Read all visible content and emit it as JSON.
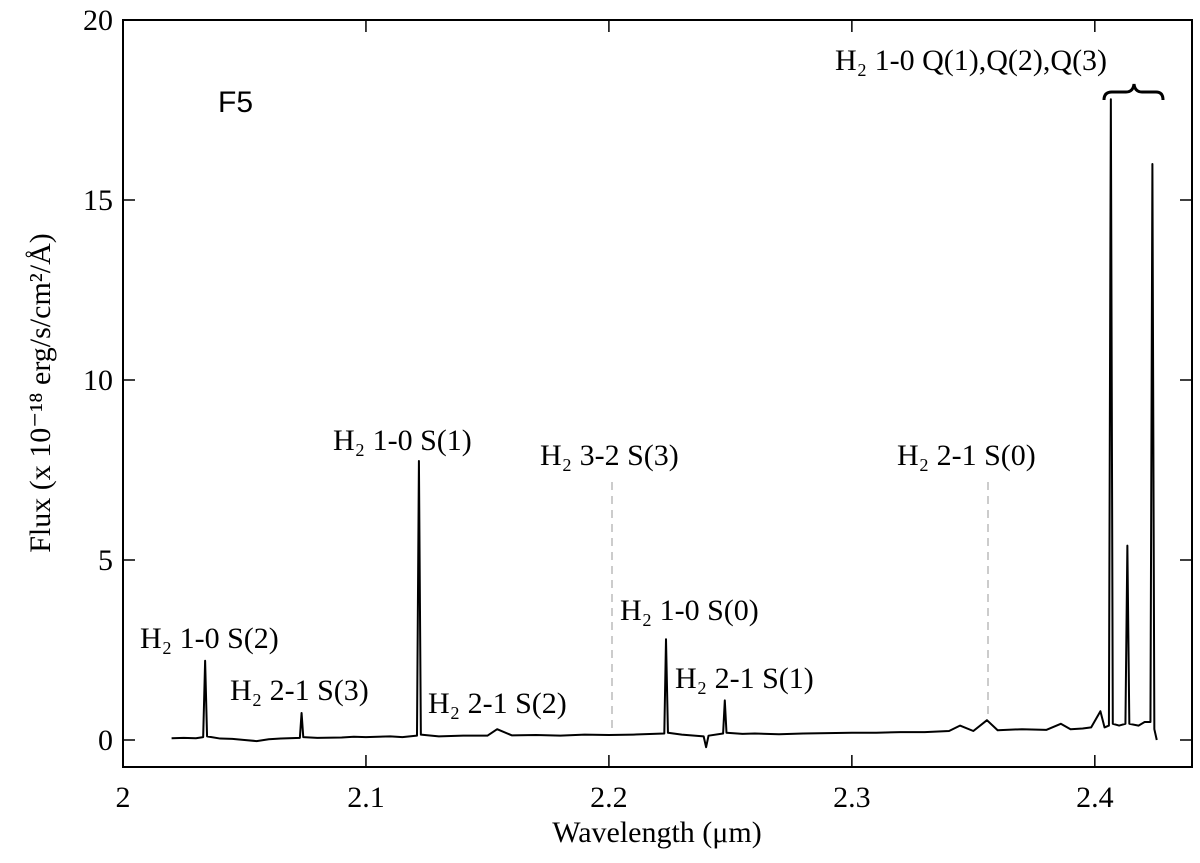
{
  "chart_data": {
    "type": "line",
    "panel_label": "F5",
    "x_label": "Wavelength (μm)",
    "y_label": "Flux (x 10⁻¹⁸ erg/s/cm²/Å)",
    "xlim": [
      2.0,
      2.44
    ],
    "ylim": [
      -0.75,
      20
    ],
    "xticks": [
      2,
      2.1,
      2.2,
      2.3,
      2.4
    ],
    "yticks": [
      0,
      5,
      10,
      15,
      20
    ],
    "annotations": [
      "H₂ 1-0 Q(1),Q(2),Q(3)",
      "H₂ 1-0 S(2)",
      "H₂ 2-1 S(3)",
      "H₂ 1-0 S(1)",
      "H₂ 2-1 S(2)",
      "H₂ 3-2 S(3)",
      "H₂ 1-0 S(0)",
      "H₂ 2-1 S(1)",
      "H₂ 2-1 S(0)"
    ],
    "series": [
      {
        "name": "F5",
        "color": "#000000",
        "x": [
          2.02,
          2.025,
          2.03,
          2.033,
          2.0338,
          2.0346,
          2.04,
          2.045,
          2.05,
          2.055,
          2.06,
          2.065,
          2.0728,
          2.0735,
          2.0742,
          2.08,
          2.09,
          2.095,
          2.1,
          2.11,
          2.115,
          2.121,
          2.1218,
          2.1226,
          2.13,
          2.14,
          2.15,
          2.154,
          2.16,
          2.17,
          2.18,
          2.19,
          2.2,
          2.21,
          2.2228,
          2.2235,
          2.2243,
          2.23,
          2.239,
          2.24,
          2.241,
          2.247,
          2.2477,
          2.2484,
          2.255,
          2.26,
          2.27,
          2.28,
          2.29,
          2.3,
          2.31,
          2.32,
          2.33,
          2.34,
          2.3445,
          2.35,
          2.3556,
          2.36,
          2.37,
          2.38,
          2.386,
          2.39,
          2.395,
          2.3985,
          2.4023,
          2.404,
          2.4058,
          2.4066,
          2.4074,
          2.41,
          2.4126,
          2.4134,
          2.4142,
          2.418,
          2.4205,
          2.4229,
          2.4237,
          2.4245,
          2.4255
        ],
        "values": [
          0.05,
          0.06,
          0.05,
          0.08,
          2.2,
          0.1,
          0.04,
          0.03,
          0.0,
          -0.03,
          0.02,
          0.04,
          0.06,
          0.75,
          0.08,
          0.06,
          0.07,
          0.09,
          0.08,
          0.1,
          0.08,
          0.12,
          7.75,
          0.15,
          0.1,
          0.12,
          0.12,
          0.3,
          0.13,
          0.14,
          0.12,
          0.15,
          0.14,
          0.15,
          0.18,
          2.8,
          0.2,
          0.15,
          0.1,
          -0.2,
          0.12,
          0.18,
          1.1,
          0.2,
          0.17,
          0.18,
          0.16,
          0.18,
          0.19,
          0.2,
          0.2,
          0.22,
          0.22,
          0.25,
          0.4,
          0.25,
          0.55,
          0.27,
          0.3,
          0.28,
          0.45,
          0.3,
          0.32,
          0.35,
          0.8,
          0.35,
          0.4,
          17.8,
          0.45,
          0.4,
          0.45,
          5.4,
          0.45,
          0.4,
          0.5,
          0.5,
          16.0,
          0.3,
          0.0
        ]
      }
    ]
  }
}
